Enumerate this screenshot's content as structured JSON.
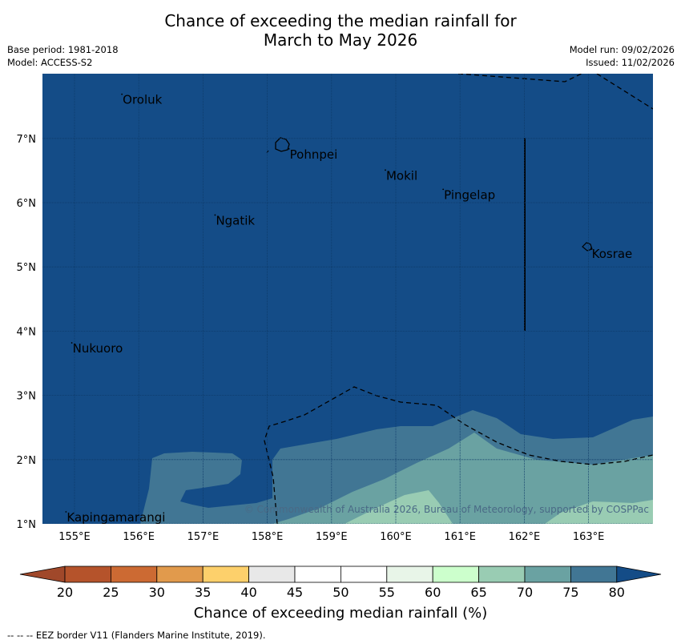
{
  "title_line1": "Chance of exceeding the median rainfall for",
  "title_line2": "March to May 2026",
  "base_period": "Base period: 1981-2018",
  "model": "Model: ACCESS-S2",
  "model_run": "Model run: 09/02/2026",
  "issued": "Issued: 11/02/2026",
  "copyright": "© Commonwealth of Australia 2026, Bureau of Meteorology, supported by COSPPac",
  "x_ticks": [
    "155°E",
    "156°E",
    "157°E",
    "158°E",
    "159°E",
    "160°E",
    "161°E",
    "162°E",
    "163°E"
  ],
  "y_ticks": [
    "7°N",
    "6°N",
    "5°N",
    "4°N",
    "3°N",
    "2°N",
    "1°N"
  ],
  "places": [
    {
      "name": "Oroluk",
      "lon": 155.75,
      "lat": 7.6
    },
    {
      "name": "Pohnpei",
      "lon": 158.35,
      "lat": 6.75
    },
    {
      "name": "Mokil",
      "lon": 159.85,
      "lat": 6.42
    },
    {
      "name": "Pingelap",
      "lon": 160.75,
      "lat": 6.12
    },
    {
      "name": "Ngatik",
      "lon": 157.2,
      "lat": 5.72
    },
    {
      "name": "Kosrae",
      "lon": 163.05,
      "lat": 5.2
    },
    {
      "name": "Nukuoro",
      "lon": 154.97,
      "lat": 3.73
    },
    {
      "name": "Kapingamarangi",
      "lon": 154.88,
      "lat": 1.1
    }
  ],
  "colorbar": {
    "title": "Chance of exceeding median rainfall (%)",
    "labels": [
      "20",
      "25",
      "30",
      "35",
      "40",
      "45",
      "50",
      "55",
      "60",
      "65",
      "70",
      "75",
      "80"
    ],
    "colors": [
      "#a0482a",
      "#b5532b",
      "#cc6a33",
      "#e19a4c",
      "#fdd06b",
      "#e8e8e8",
      "#ffffff",
      "#ffffff",
      "#e8f5e8",
      "#ccffcc",
      "#99ccb3",
      "#6aa2a2",
      "#417694",
      "#144c87"
    ]
  },
  "legend_note": "--  --  -- EEZ border V11 (Flanders Marine Institute, 2019)."
}
